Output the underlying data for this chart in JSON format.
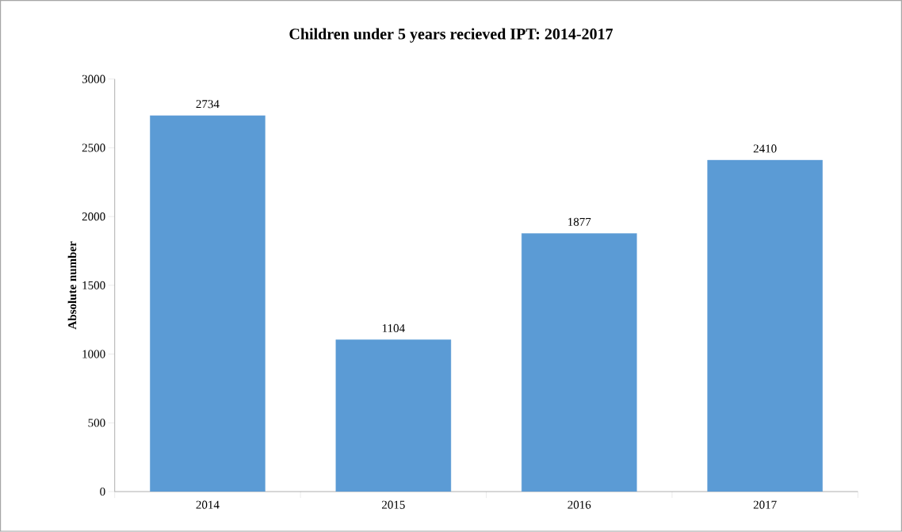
{
  "chart_data": {
    "type": "bar",
    "title": "Children  under 5 years recieved IPT: 2014-2017",
    "ylabel": "Absolute number",
    "categories": [
      "2014",
      "2015",
      "2016",
      "2017"
    ],
    "values": [
      2734,
      1104,
      1877,
      2410
    ],
    "color": "#5b9bd5",
    "ylim": [
      0,
      3000
    ],
    "yticks": [
      0,
      500,
      1000,
      1500,
      2000,
      2500,
      3000
    ],
    "grid": false,
    "data_labels": true
  }
}
